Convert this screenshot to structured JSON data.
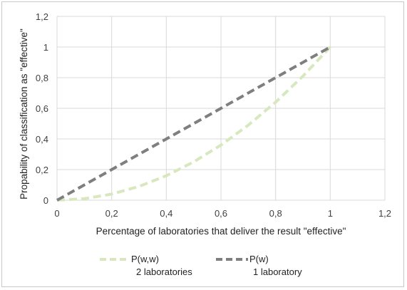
{
  "chart_data": {
    "type": "line",
    "xlabel": "Percentage of laboratories that deliver the result \"effective\"",
    "ylabel": "Propability of classification as \"effective\"",
    "xlim": [
      0,
      1.2
    ],
    "ylim": [
      0,
      1.2
    ],
    "x_ticks": [
      "0",
      "0,2",
      "0,4",
      "0,6",
      "0,8",
      "1",
      "1,2"
    ],
    "y_ticks": [
      "0",
      "0,2",
      "0,4",
      "0,6",
      "0,8",
      "1",
      "1,2"
    ],
    "grid": "vertical and horizontal",
    "legend_position": "bottom",
    "series": [
      {
        "name": "P(w,w)",
        "sublabel": "2 laboratories",
        "color": "#d7e8bf",
        "style": "dashed",
        "x": [
          0,
          0.1,
          0.2,
          0.3,
          0.4,
          0.5,
          0.6,
          0.7,
          0.8,
          0.9,
          1.0
        ],
        "y": [
          0,
          0.01,
          0.04,
          0.09,
          0.16,
          0.25,
          0.36,
          0.49,
          0.64,
          0.81,
          1.0
        ]
      },
      {
        "name": "P(w)",
        "sublabel": "1 laboratory",
        "color": "#7f7f7f",
        "style": "dashed",
        "x": [
          0,
          0.2,
          0.4,
          0.6,
          0.8,
          1.0
        ],
        "y": [
          0,
          0.2,
          0.4,
          0.6,
          0.8,
          1.0
        ]
      }
    ]
  }
}
